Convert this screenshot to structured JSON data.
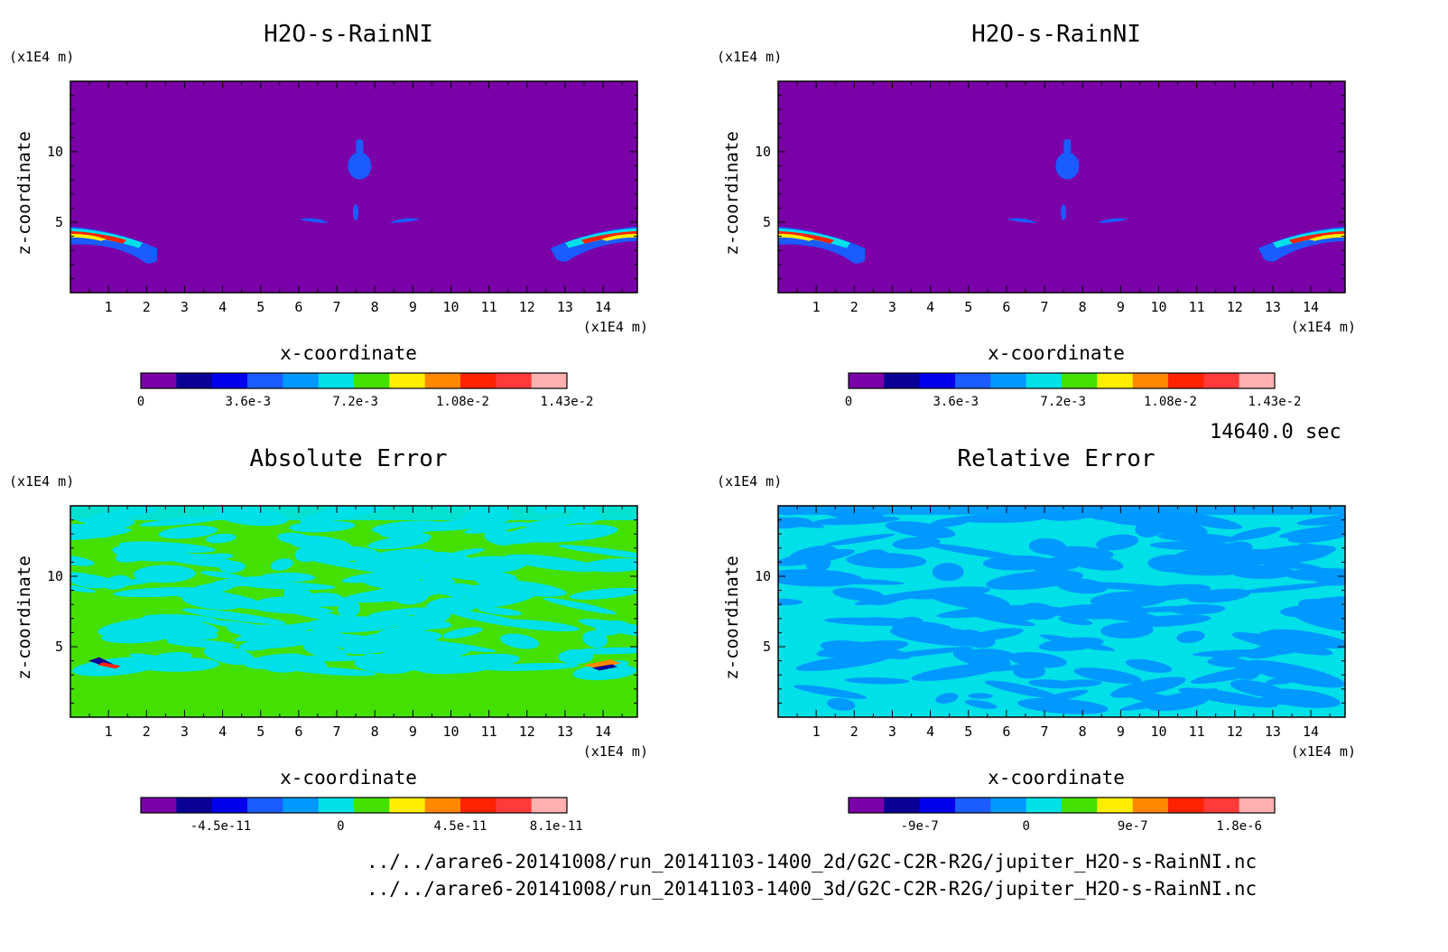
{
  "chart_data": [
    {
      "type": "heatmap",
      "title": "H2O-s-RainNI",
      "xlabel": "x-coordinate",
      "ylabel": "z-coordinate",
      "x_unit": "(x1E4 m)",
      "y_unit": "(x1E4 m)",
      "xticks": [
        "1",
        "2",
        "3",
        "4",
        "5",
        "6",
        "7",
        "8",
        "9",
        "10",
        "11",
        "12",
        "13",
        "14"
      ],
      "yticks": [
        "5",
        "10"
      ],
      "xlim": [
        0,
        14.9
      ],
      "ylim": [
        0,
        15
      ],
      "colorbar": {
        "colors": [
          "#7a00a8",
          "#0a0096",
          "#0000ee",
          "#1a5cff",
          "#0099ff",
          "#00e0e8",
          "#44e000",
          "#ffee00",
          "#ff8800",
          "#ff2200",
          "#ff3a3a",
          "#ffb0b0"
        ],
        "labels": [
          "0",
          "3.6e-3",
          "7.2e-3",
          "1.08e-2",
          "1.43e-2"
        ],
        "label_values": [
          0,
          0.0036,
          0.0072,
          0.0108,
          0.0143
        ],
        "range": [
          0,
          0.0143
        ]
      }
    },
    {
      "type": "heatmap",
      "title": "H2O-s-RainNI",
      "xlabel": "x-coordinate",
      "ylabel": "z-coordinate",
      "x_unit": "(x1E4 m)",
      "y_unit": "(x1E4 m)",
      "xticks": [
        "1",
        "2",
        "3",
        "4",
        "5",
        "6",
        "7",
        "8",
        "9",
        "10",
        "11",
        "12",
        "13",
        "14"
      ],
      "yticks": [
        "5",
        "10"
      ],
      "xlim": [
        0,
        14.9
      ],
      "ylim": [
        0,
        15
      ],
      "colorbar": {
        "colors": [
          "#7a00a8",
          "#0a0096",
          "#0000ee",
          "#1a5cff",
          "#0099ff",
          "#00e0e8",
          "#44e000",
          "#ffee00",
          "#ff8800",
          "#ff2200",
          "#ff3a3a",
          "#ffb0b0"
        ],
        "labels": [
          "0",
          "3.6e-3",
          "7.2e-3",
          "1.08e-2",
          "1.43e-2"
        ],
        "label_values": [
          0,
          0.0036,
          0.0072,
          0.0108,
          0.0143
        ],
        "range": [
          0,
          0.0143
        ]
      }
    },
    {
      "type": "heatmap",
      "title": "Absolute Error",
      "xlabel": "x-coordinate",
      "ylabel": "z-coordinate",
      "x_unit": "(x1E4 m)",
      "y_unit": "(x1E4 m)",
      "xticks": [
        "1",
        "2",
        "3",
        "4",
        "5",
        "6",
        "7",
        "8",
        "9",
        "10",
        "11",
        "12",
        "13",
        "14"
      ],
      "yticks": [
        "5",
        "10"
      ],
      "xlim": [
        0,
        14.9
      ],
      "ylim": [
        0,
        15
      ],
      "colorbar": {
        "colors": [
          "#7a00a8",
          "#0a0096",
          "#0000ee",
          "#1a5cff",
          "#0099ff",
          "#00e0e8",
          "#44e000",
          "#ffee00",
          "#ff8800",
          "#ff2200",
          "#ff3a3a",
          "#ffb0b0"
        ],
        "labels": [
          "-4.5e-11",
          "0",
          "4.5e-11",
          "8.1e-11"
        ],
        "label_values": [
          -4.5e-11,
          0,
          4.5e-11,
          8.1e-11
        ],
        "range": [
          -7.5e-11,
          8.5e-11
        ]
      }
    },
    {
      "type": "heatmap",
      "title": "Relative Error",
      "xlabel": "x-coordinate",
      "ylabel": "z-coordinate",
      "x_unit": "(x1E4 m)",
      "y_unit": "(x1E4 m)",
      "xticks": [
        "1",
        "2",
        "3",
        "4",
        "5",
        "6",
        "7",
        "8",
        "9",
        "10",
        "11",
        "12",
        "13",
        "14"
      ],
      "yticks": [
        "5",
        "10"
      ],
      "xlim": [
        0,
        14.9
      ],
      "ylim": [
        0,
        15
      ],
      "colorbar": {
        "colors": [
          "#7a00a8",
          "#0a0096",
          "#0000ee",
          "#1a5cff",
          "#0099ff",
          "#00e0e8",
          "#44e000",
          "#ffee00",
          "#ff8800",
          "#ff2200",
          "#ff3a3a",
          "#ffb0b0"
        ],
        "labels": [
          "-9e-7",
          "0",
          "9e-7",
          "1.8e-6"
        ],
        "label_values": [
          -9e-07,
          0,
          9e-07,
          1.8e-06
        ],
        "range": [
          -1.5e-06,
          2.1e-06
        ]
      }
    }
  ],
  "time_label": "14640.0 sec",
  "file_paths": [
    "../../arare6-20141008/run_20141103-1400_2d/G2C-C2R-R2G/jupiter_H2O-s-RainNI.nc",
    "../../arare6-20141008/run_20141103-1400_3d/G2C-C2R-R2G/jupiter_H2O-s-RainNI.nc"
  ]
}
